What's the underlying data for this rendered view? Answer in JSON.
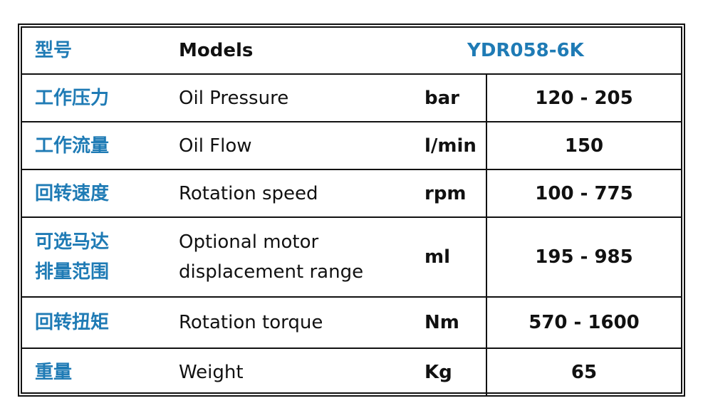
{
  "header": {
    "zh": "型号",
    "en": "Models",
    "value": "YDR058-6K"
  },
  "rows": [
    {
      "zh": "工作压力",
      "en": "Oil Pressure",
      "unit": "bar",
      "value": "120 - 205"
    },
    {
      "zh": "工作流量",
      "en": "Oil Flow",
      "unit": "l/min",
      "value": "150"
    },
    {
      "zh": "回转速度",
      "en": "Rotation speed",
      "unit": "rpm",
      "value": "100 - 775"
    },
    {
      "zh": "可选马达\n排量范围",
      "en": "Optional motor\ndisplacement range",
      "unit": "ml",
      "value": "195 - 985"
    },
    {
      "zh": "回转扭矩",
      "en": "Rotation torque",
      "unit": "Nm",
      "value": "570 - 1600"
    },
    {
      "zh": "重量",
      "en": "Weight",
      "unit": "Kg",
      "value": "65"
    }
  ]
}
